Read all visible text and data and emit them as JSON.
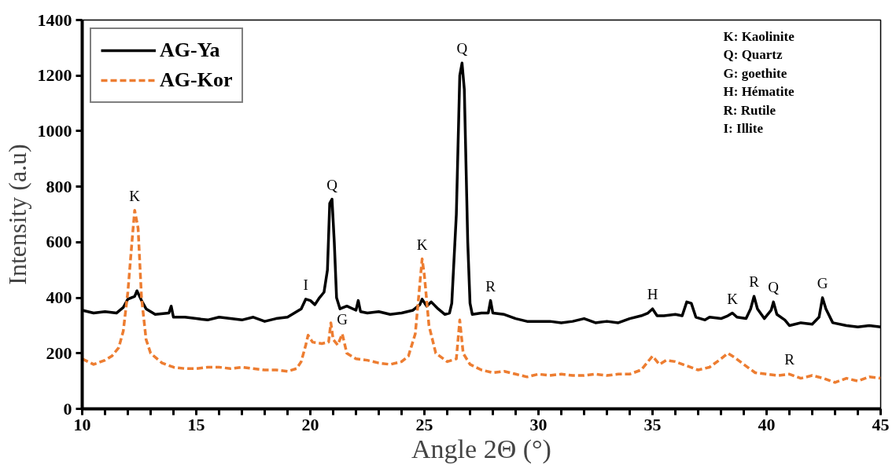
{
  "chart_data": {
    "type": "line",
    "xlabel": "Angle 2Θ (°)",
    "ylabel": "Intensity (a.u)",
    "xlim": [
      10,
      45
    ],
    "xticks": [
      10,
      15,
      20,
      25,
      30,
      35,
      40,
      45
    ],
    "ylim": [
      0,
      1400
    ],
    "yticks": [
      0,
      200,
      400,
      600,
      800,
      1000,
      1200,
      1400
    ],
    "grid": false,
    "legend": "top left",
    "marker": "none",
    "series": [
      {
        "name": "AG-Ya",
        "color": "#000000",
        "line_style": "solid",
        "x": [
          10,
          10.5,
          11,
          11.5,
          11.8,
          12.0,
          12.3,
          12.4,
          12.6,
          12.8,
          13.2,
          13.8,
          13.9,
          14.0,
          14.5,
          15,
          15.5,
          16,
          16.5,
          17,
          17.5,
          18,
          18.5,
          19,
          19.3,
          19.6,
          19.8,
          20.0,
          20.2,
          20.4,
          20.6,
          20.75,
          20.85,
          20.95,
          21.05,
          21.15,
          21.3,
          21.6,
          22.0,
          22.1,
          22.2,
          22.5,
          23,
          23.5,
          24,
          24.5,
          24.8,
          24.9,
          25.1,
          25.3,
          25.6,
          25.9,
          26.1,
          26.2,
          26.4,
          26.55,
          26.65,
          26.75,
          26.9,
          27.0,
          27.1,
          27.5,
          27.8,
          27.9,
          28.0,
          28.5,
          29,
          29.5,
          30,
          30.5,
          31,
          31.5,
          32,
          32.5,
          33,
          33.5,
          34,
          34.5,
          34.8,
          35.0,
          35.2,
          35.5,
          36,
          36.3,
          36.5,
          36.7,
          36.9,
          37.3,
          37.5,
          38,
          38.3,
          38.5,
          38.7,
          39.1,
          39.3,
          39.45,
          39.6,
          39.9,
          40.2,
          40.3,
          40.45,
          40.8,
          41,
          41.5,
          42,
          42.3,
          42.45,
          42.6,
          42.9,
          43.5,
          44,
          44.5,
          45
        ],
        "values": [
          355,
          345,
          350,
          345,
          365,
          395,
          405,
          425,
          390,
          360,
          340,
          345,
          370,
          330,
          330,
          325,
          320,
          330,
          325,
          320,
          330,
          315,
          325,
          330,
          345,
          360,
          395,
          390,
          375,
          400,
          420,
          500,
          740,
          755,
          600,
          400,
          360,
          370,
          355,
          390,
          350,
          345,
          350,
          340,
          345,
          355,
          375,
          395,
          370,
          385,
          360,
          340,
          345,
          380,
          700,
          1200,
          1245,
          1150,
          600,
          380,
          340,
          345,
          345,
          390,
          345,
          340,
          325,
          315,
          315,
          315,
          310,
          315,
          325,
          310,
          315,
          310,
          325,
          335,
          345,
          360,
          335,
          335,
          340,
          335,
          385,
          380,
          330,
          320,
          330,
          325,
          335,
          345,
          330,
          325,
          360,
          405,
          360,
          325,
          355,
          385,
          340,
          320,
          300,
          310,
          305,
          330,
          400,
          360,
          310,
          300,
          295,
          300,
          295
        ]
      },
      {
        "name": "AG-Kor",
        "color": "#ed7d31",
        "line_style": "dashed",
        "x": [
          10,
          10.5,
          11,
          11.3,
          11.6,
          11.8,
          12.0,
          12.2,
          12.3,
          12.45,
          12.6,
          12.8,
          13.0,
          13.5,
          14,
          14.5,
          15,
          15.5,
          16,
          16.5,
          17,
          17.5,
          18,
          18.5,
          19,
          19.4,
          19.6,
          19.8,
          19.9,
          20.1,
          20.5,
          20.8,
          20.9,
          21.0,
          21.2,
          21.4,
          21.6,
          22,
          22.5,
          23,
          23.5,
          24,
          24.3,
          24.6,
          24.8,
          24.9,
          25.0,
          25.2,
          25.5,
          26,
          26.4,
          26.55,
          26.7,
          27,
          27.5,
          28,
          28.5,
          29,
          29.5,
          30,
          30.5,
          31,
          31.5,
          32,
          32.5,
          33,
          33.5,
          34,
          34.5,
          35.0,
          35.3,
          35.6,
          36,
          36.5,
          37,
          37.5,
          38,
          38.3,
          38.6,
          39,
          39.5,
          40,
          40.5,
          41,
          41.5,
          42,
          42.5,
          43,
          43.5,
          44,
          44.5,
          45
        ],
        "values": [
          180,
          160,
          175,
          190,
          220,
          280,
          420,
          620,
          715,
          650,
          400,
          250,
          200,
          165,
          150,
          145,
          145,
          150,
          150,
          145,
          150,
          145,
          140,
          140,
          135,
          145,
          170,
          230,
          265,
          240,
          235,
          240,
          310,
          250,
          230,
          270,
          200,
          180,
          175,
          165,
          160,
          170,
          190,
          270,
          450,
          540,
          480,
          300,
          200,
          170,
          180,
          320,
          200,
          160,
          140,
          130,
          135,
          125,
          115,
          125,
          120,
          125,
          120,
          120,
          125,
          120,
          125,
          125,
          140,
          190,
          160,
          175,
          170,
          155,
          140,
          150,
          180,
          200,
          185,
          160,
          130,
          125,
          120,
          125,
          110,
          120,
          110,
          95,
          110,
          100,
          115,
          110
        ]
      }
    ],
    "annotations": [
      {
        "text": "K",
        "x": 12.3,
        "y": 715
      },
      {
        "text": "I",
        "x": 19.8,
        "y": 395
      },
      {
        "text": "Q",
        "x": 20.95,
        "y": 755
      },
      {
        "text": "G",
        "x": 21.4,
        "y": 270
      },
      {
        "text": "K",
        "x": 24.9,
        "y": 540
      },
      {
        "text": "Q",
        "x": 26.65,
        "y": 1245
      },
      {
        "text": "R",
        "x": 27.9,
        "y": 390
      },
      {
        "text": "H",
        "x": 35.0,
        "y": 360
      },
      {
        "text": "K",
        "x": 38.5,
        "y": 345
      },
      {
        "text": "R",
        "x": 39.45,
        "y": 405
      },
      {
        "text": "Q",
        "x": 40.3,
        "y": 385
      },
      {
        "text": "G",
        "x": 42.45,
        "y": 400
      },
      {
        "text": "R",
        "x": 41.0,
        "y": 125
      },
      "K: Kaolinite",
      "Q: Quartz",
      "G: goethite",
      "H: Hématite",
      "R: Rutile",
      "I: Illite"
    ]
  }
}
